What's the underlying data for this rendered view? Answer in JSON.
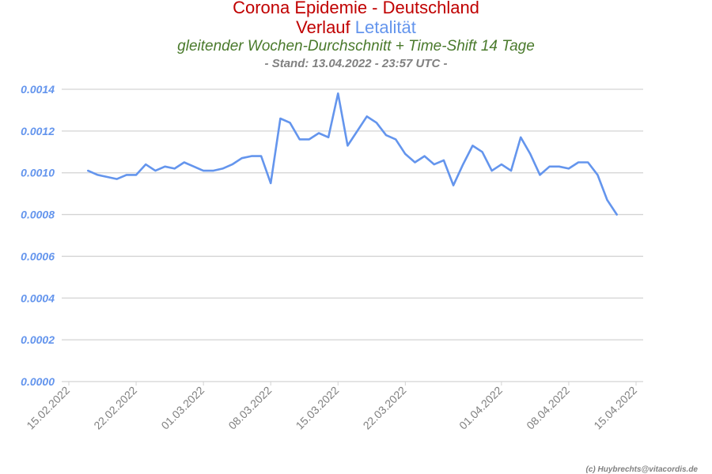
{
  "header": {
    "title": "Corona Epidemie - Deutschland",
    "subtitle_prefix": "Verlauf",
    "subtitle_highlight": "Letalität",
    "description": "gleitender Wochen-Durchschnitt + Time-Shift 14 Tage",
    "stand": "- Stand: 13.04.2022 - 23:57 UTC -"
  },
  "credit": "(c) Huybrechts@vitacordis.de",
  "colors": {
    "title": "#c00000",
    "series": "#6495ed",
    "description": "#4a7a2c",
    "axis_text": "#808080",
    "y_tick_text": "#6495ed",
    "grid": "#d3d3d3"
  },
  "chart_data": {
    "type": "line",
    "title": "Corona Epidemie - Deutschland",
    "x_ticks": [
      "15.02.2022",
      "22.02.2022",
      "01.03.2022",
      "08.03.2022",
      "15.03.2022",
      "22.03.2022",
      "01.04.2022",
      "08.04.2022",
      "15.04.2022"
    ],
    "y_ticks": [
      "0.0000",
      "0.0002",
      "0.0004",
      "0.0006",
      "0.0008",
      "0.0010",
      "0.0012",
      "0.0014"
    ],
    "xlim": [
      "15.02.2022",
      "15.04.2022"
    ],
    "ylim": [
      0,
      0.0014
    ],
    "grid": "horizontal",
    "series": [
      {
        "x": [
          "17.02.2022",
          "18.02.2022",
          "19.02.2022",
          "20.02.2022",
          "21.02.2022",
          "22.02.2022",
          "23.02.2022",
          "24.02.2022",
          "25.02.2022",
          "26.02.2022",
          "27.02.2022",
          "28.02.2022",
          "01.03.2022",
          "02.03.2022",
          "03.03.2022",
          "04.03.2022",
          "05.03.2022",
          "06.03.2022",
          "07.03.2022",
          "08.03.2022",
          "09.03.2022",
          "10.03.2022",
          "11.03.2022",
          "12.03.2022",
          "13.03.2022",
          "14.03.2022",
          "15.03.2022",
          "16.03.2022",
          "17.03.2022",
          "18.03.2022",
          "19.03.2022",
          "20.03.2022",
          "21.03.2022",
          "22.03.2022",
          "23.03.2022",
          "24.03.2022",
          "25.03.2022",
          "26.03.2022",
          "27.03.2022",
          "28.03.2022",
          "29.03.2022",
          "30.03.2022",
          "31.03.2022",
          "01.04.2022",
          "02.04.2022",
          "03.04.2022",
          "04.04.2022",
          "05.04.2022",
          "06.04.2022",
          "07.04.2022",
          "08.04.2022",
          "09.04.2022",
          "10.04.2022",
          "11.04.2022",
          "12.04.2022",
          "13.04.2022"
        ],
        "values": [
          0.00101,
          0.00099,
          0.00098,
          0.00097,
          0.00099,
          0.00099,
          0.00104,
          0.00101,
          0.00103,
          0.00102,
          0.00105,
          0.00103,
          0.00101,
          0.00101,
          0.00102,
          0.00104,
          0.00107,
          0.00108,
          0.00108,
          0.00095,
          0.00126,
          0.00124,
          0.00116,
          0.00116,
          0.00119,
          0.00117,
          0.00138,
          0.00113,
          0.0012,
          0.00127,
          0.00124,
          0.00118,
          0.00116,
          0.00109,
          0.00105,
          0.00108,
          0.00104,
          0.00106,
          0.00094,
          0.00104,
          0.00113,
          0.0011,
          0.00101,
          0.00104,
          0.00101,
          0.00117,
          0.00109,
          0.00099,
          0.00103,
          0.00103,
          0.00102,
          0.00105,
          0.00105,
          0.00099,
          0.00087,
          0.0008
        ]
      }
    ]
  }
}
